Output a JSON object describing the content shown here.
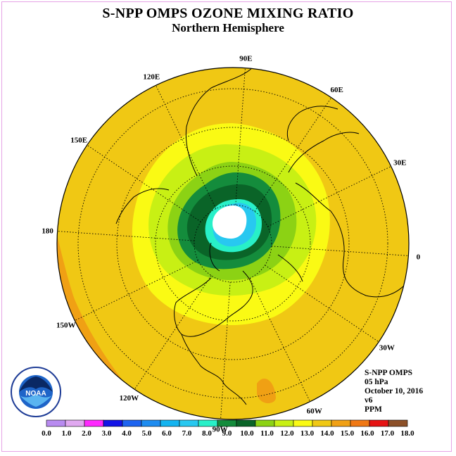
{
  "title": "S-NPP OMPS OZONE MIXING RATIO",
  "subtitle": "Northern Hemisphere",
  "longitude_labels": [
    {
      "text": "90E",
      "lon": 90
    },
    {
      "text": "60E",
      "lon": 60
    },
    {
      "text": "30E",
      "lon": 30
    },
    {
      "text": "0",
      "lon": 0
    },
    {
      "text": "30W",
      "lon": -30
    },
    {
      "text": "60W",
      "lon": -60
    },
    {
      "text": "90W",
      "lon": -90
    },
    {
      "text": "120W",
      "lon": -120
    },
    {
      "text": "150W",
      "lon": -150
    },
    {
      "text": "180",
      "lon": 180
    },
    {
      "text": "150E",
      "lon": 150
    },
    {
      "text": "120E",
      "lon": 120
    }
  ],
  "info": {
    "instrument": "S-NPP OMPS",
    "level": "05 hPa",
    "date": "October 10, 2016",
    "version": "v6",
    "units": "PPM"
  },
  "colorbar": {
    "ticks": [
      "0.0",
      "1.0",
      "2.0",
      "3.0",
      "4.0",
      "5.0",
      "6.0",
      "7.0",
      "8.0",
      "9.0",
      "10.0",
      "11.0",
      "12.0",
      "13.0",
      "14.0",
      "15.0",
      "16.0",
      "17.0",
      "18.0"
    ],
    "colors": [
      "#b88bf0",
      "#e0a8f0",
      "#ff28ff",
      "#1414e6",
      "#1e64f0",
      "#1e8cf0",
      "#14b4f0",
      "#28c8f0",
      "#28f0c8",
      "#148c3c",
      "#0a6428",
      "#8cd214",
      "#c8f014",
      "#fafa14",
      "#f0c814",
      "#f0a014",
      "#f07814",
      "#e61414",
      "#8c5028"
    ]
  },
  "logo": {
    "text": "NOAA",
    "ring_text": "NATIONAL OCEANIC AND ATMOSPHERIC ADMINISTRATION · U.S. DEPARTMENT OF COMMERCE"
  },
  "ozone_field": {
    "background_ppm": "14.0-15.0",
    "polar_minimum_ppm": "below 7.0",
    "contour_levels": [
      "7.0",
      "8.0",
      "9.0",
      "10.0",
      "11.0",
      "12.0",
      "13.0",
      "14.0",
      "15.0"
    ]
  }
}
